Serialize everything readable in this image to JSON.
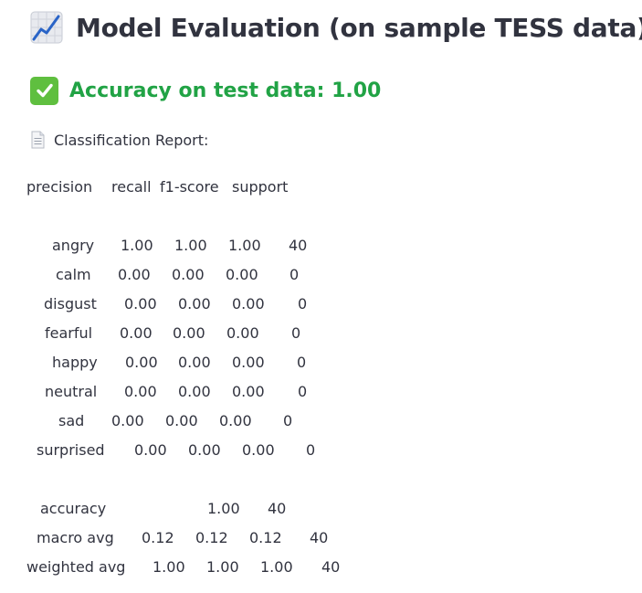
{
  "header": {
    "title": "Model Evaluation (on sample TESS data)",
    "title_icon": "chart-increasing-icon"
  },
  "accuracy": {
    "text": "Accuracy on test data: 1.00",
    "icon": "check-mark-button-icon",
    "color": "#21a345"
  },
  "report": {
    "label": "Classification Report:",
    "icon": "page-facing-up-icon",
    "columns": [
      "precision",
      "recall",
      "f1-score",
      "support"
    ],
    "rows": [
      {
        "label": "angry",
        "precision": "1.00",
        "recall": "1.00",
        "f1": "1.00",
        "support": "40"
      },
      {
        "label": "calm",
        "precision": "0.00",
        "recall": "0.00",
        "f1": "0.00",
        "support": "0"
      },
      {
        "label": "disgust",
        "precision": "0.00",
        "recall": "0.00",
        "f1": "0.00",
        "support": "0"
      },
      {
        "label": "fearful",
        "precision": "0.00",
        "recall": "0.00",
        "f1": "0.00",
        "support": "0"
      },
      {
        "label": "happy",
        "precision": "0.00",
        "recall": "0.00",
        "f1": "0.00",
        "support": "0"
      },
      {
        "label": "neutral",
        "precision": "0.00",
        "recall": "0.00",
        "f1": "0.00",
        "support": "0"
      },
      {
        "label": "sad",
        "precision": "0.00",
        "recall": "0.00",
        "f1": "0.00",
        "support": "0"
      },
      {
        "label": "surprised",
        "precision": "0.00",
        "recall": "0.00",
        "f1": "0.00",
        "support": "0"
      }
    ],
    "summary": [
      {
        "label": "accuracy",
        "f1": "1.00",
        "support": "40"
      },
      {
        "label": "macro avg",
        "precision": "0.12",
        "recall": "0.12",
        "f1": "0.12",
        "support": "40"
      },
      {
        "label": "weighted avg",
        "precision": "1.00",
        "recall": "1.00",
        "f1": "1.00",
        "support": "40"
      }
    ]
  }
}
